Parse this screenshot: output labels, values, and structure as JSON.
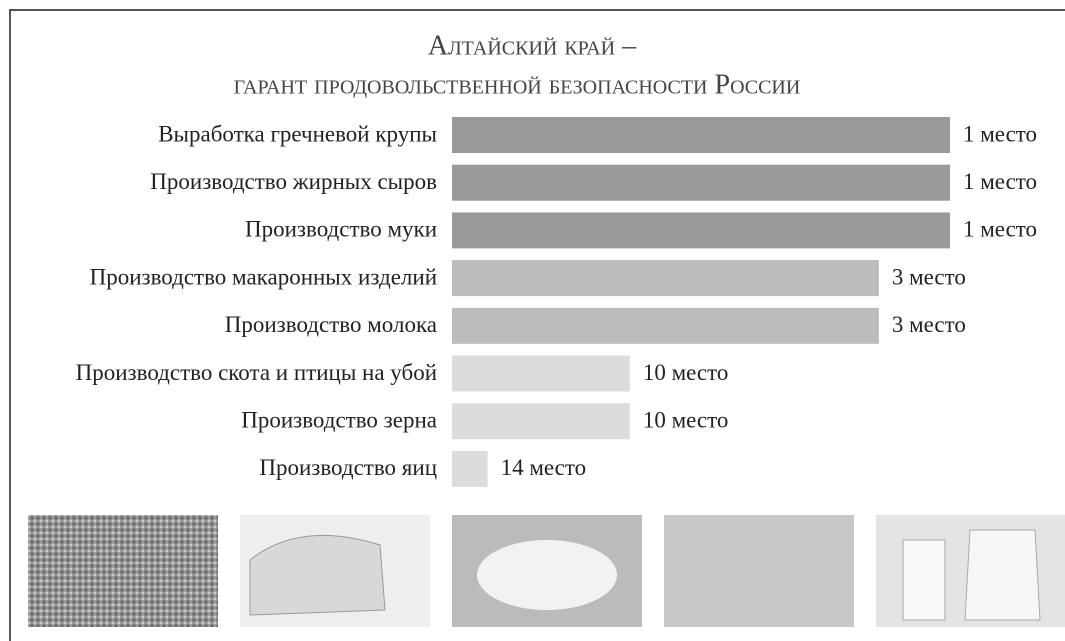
{
  "chart_data": {
    "type": "bar",
    "orientation": "horizontal",
    "title": "Алтайский край –",
    "subtitle": "гарант продовольственной безопасности России",
    "categories": [
      "Выработка гречневой крупы",
      "Производство жирных сыров",
      "Производство муки",
      "Производство макаронных изделий",
      "Производство молока",
      "Производство скота и птицы на убой",
      "Производство зерна",
      "Производство яиц"
    ],
    "values": [
      1,
      1,
      1,
      3,
      3,
      10,
      10,
      14
    ],
    "value_labels": [
      "1 место",
      "1 место",
      "1 место",
      "3 место",
      "3 место",
      "10 место",
      "10 место",
      "14 место"
    ],
    "colors": [
      "#999999",
      "#999999",
      "#999999",
      "#bcbcbc",
      "#bcbcbc",
      "#dcdcdc",
      "#dcdcdc",
      "#dcdcdc"
    ]
  }
}
